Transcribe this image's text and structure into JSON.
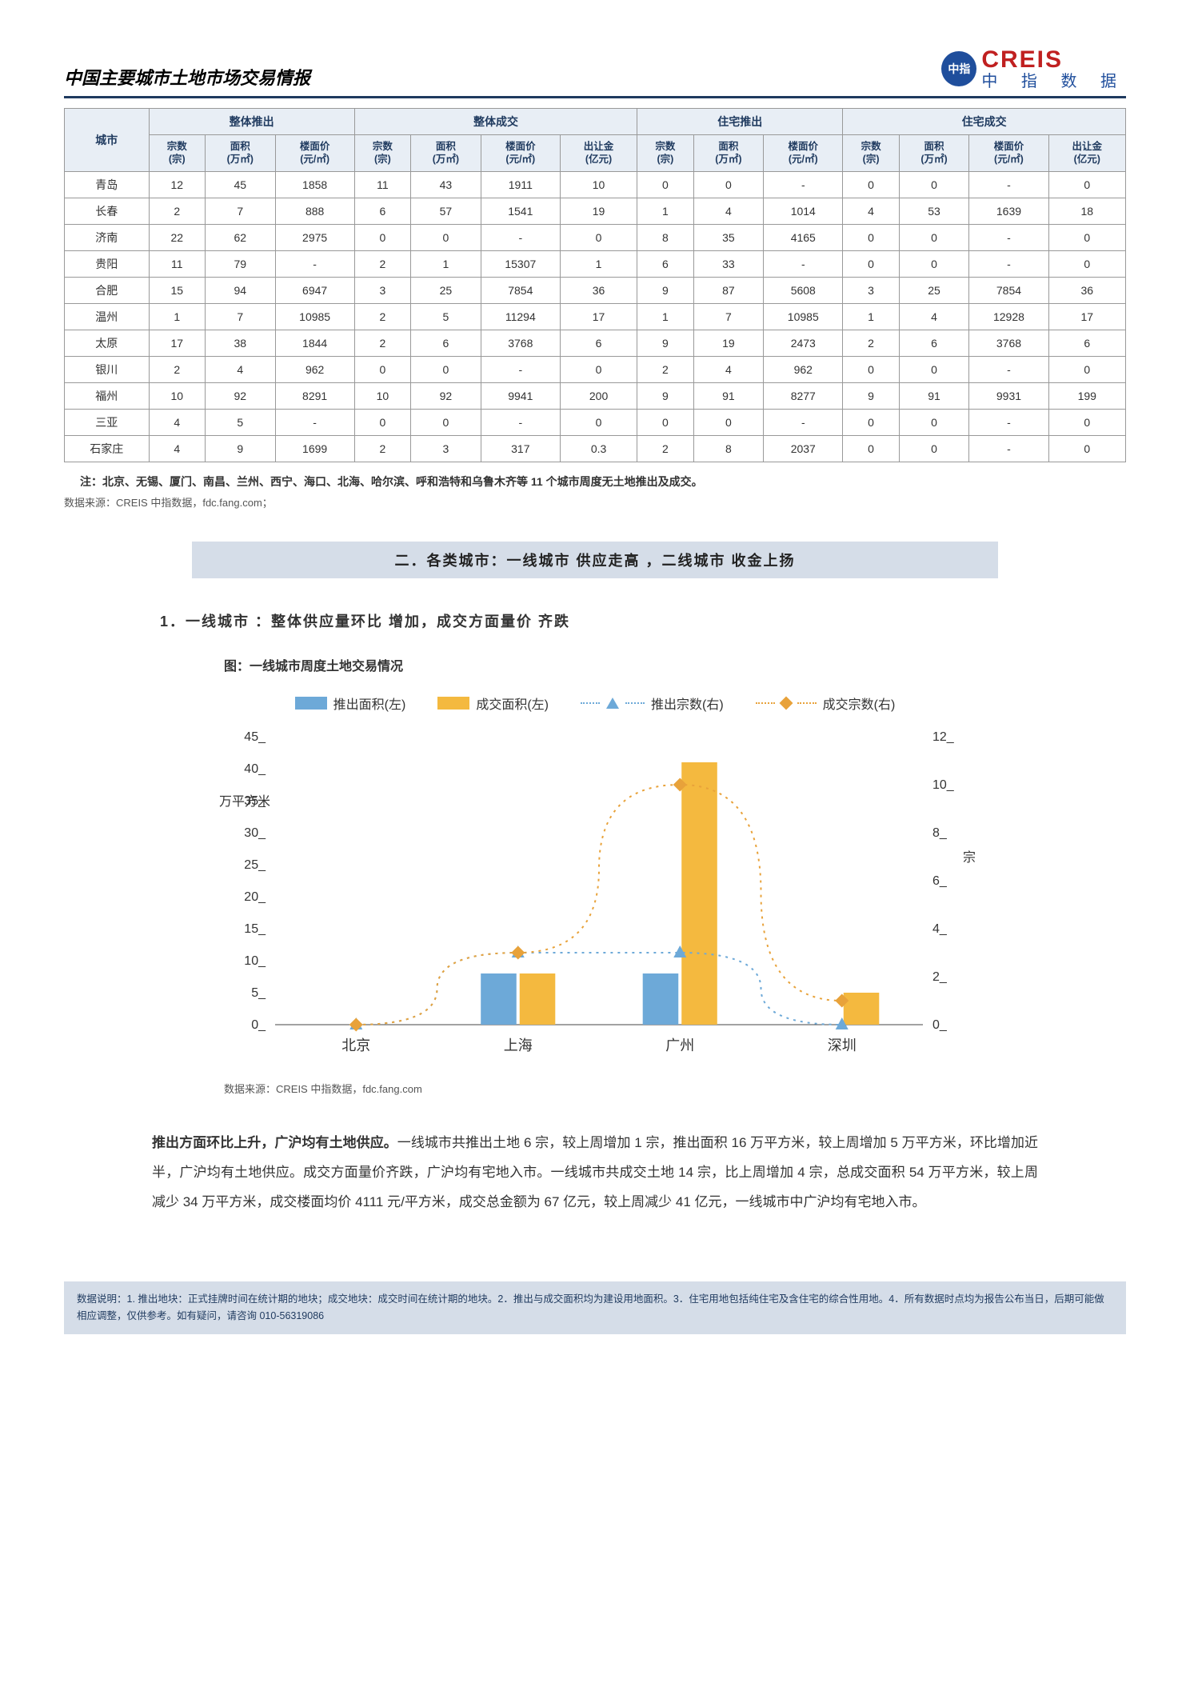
{
  "header": {
    "title": "中国主要城市土地市场交易情报",
    "logo_en": "CREIS",
    "logo_cn": "中 指 数 据",
    "logo_badge": "中指"
  },
  "table": {
    "city_header": "城市",
    "groups": [
      "整体推出",
      "整体成交",
      "住宅推出",
      "住宅成交"
    ],
    "cols_g1": [
      "宗数\n(宗)",
      "面积\n(万㎡)",
      "楼面价\n(元/㎡)"
    ],
    "cols_g2": [
      "宗数\n(宗)",
      "面积\n(万㎡)",
      "楼面价\n(元/㎡)",
      "出让金\n(亿元)"
    ],
    "cols_g3": [
      "宗数\n(宗)",
      "面积\n(万㎡)",
      "楼面价\n(元/㎡)"
    ],
    "cols_g4": [
      "宗数\n(宗)",
      "面积\n(万㎡)",
      "楼面价\n(元/㎡)",
      "出让金\n(亿元)"
    ],
    "rows": [
      {
        "city": "青岛",
        "v": [
          "12",
          "45",
          "1858",
          "11",
          "43",
          "1911",
          "10",
          "0",
          "0",
          "-",
          "0",
          "0",
          "-",
          "0"
        ]
      },
      {
        "city": "长春",
        "v": [
          "2",
          "7",
          "888",
          "6",
          "57",
          "1541",
          "19",
          "1",
          "4",
          "1014",
          "4",
          "53",
          "1639",
          "18"
        ]
      },
      {
        "city": "济南",
        "v": [
          "22",
          "62",
          "2975",
          "0",
          "0",
          "-",
          "0",
          "8",
          "35",
          "4165",
          "0",
          "0",
          "-",
          "0"
        ]
      },
      {
        "city": "贵阳",
        "v": [
          "11",
          "79",
          "-",
          "2",
          "1",
          "15307",
          "1",
          "6",
          "33",
          "-",
          "0",
          "0",
          "-",
          "0"
        ]
      },
      {
        "city": "合肥",
        "v": [
          "15",
          "94",
          "6947",
          "3",
          "25",
          "7854",
          "36",
          "9",
          "87",
          "5608",
          "3",
          "25",
          "7854",
          "36"
        ]
      },
      {
        "city": "温州",
        "v": [
          "1",
          "7",
          "10985",
          "2",
          "5",
          "11294",
          "17",
          "1",
          "7",
          "10985",
          "1",
          "4",
          "12928",
          "17"
        ]
      },
      {
        "city": "太原",
        "v": [
          "17",
          "38",
          "1844",
          "2",
          "6",
          "3768",
          "6",
          "9",
          "19",
          "2473",
          "2",
          "6",
          "3768",
          "6"
        ]
      },
      {
        "city": "银川",
        "v": [
          "2",
          "4",
          "962",
          "0",
          "0",
          "-",
          "0",
          "2",
          "4",
          "962",
          "0",
          "0",
          "-",
          "0"
        ]
      },
      {
        "city": "福州",
        "v": [
          "10",
          "92",
          "8291",
          "10",
          "92",
          "9941",
          "200",
          "9",
          "91",
          "8277",
          "9",
          "91",
          "9931",
          "199"
        ]
      },
      {
        "city": "三亚",
        "v": [
          "4",
          "5",
          "-",
          "0",
          "0",
          "-",
          "0",
          "0",
          "0",
          "-",
          "0",
          "0",
          "-",
          "0"
        ]
      },
      {
        "city": "石家庄",
        "v": [
          "4",
          "9",
          "1699",
          "2",
          "3",
          "317",
          "0.3",
          "2",
          "8",
          "2037",
          "0",
          "0",
          "-",
          "0"
        ]
      }
    ]
  },
  "note": "注：北京、无锡、厦门、南昌、兰州、西宁、海口、北海、哈尔滨、呼和浩特和乌鲁木齐等 11 个城市周度无土地推出及成交。",
  "source": "数据来源：CREIS 中指数据，fdc.fang.com；",
  "section_banner": "二．各类城市：一线城市 供应走高 ，二线城市 收金上扬",
  "sub_heading": "1．一线城市 ：整体供应量环比 增加，成交方面量价 齐跌",
  "chart_title": "图：一线城市周度土地交易情况",
  "legend": {
    "a": "推出面积(左)",
    "b": "成交面积(左)",
    "c": "推出宗数(右)",
    "d": "成交宗数(右)"
  },
  "chart": {
    "type": "bar+line",
    "categories": [
      "北京",
      "上海",
      "广州",
      "深圳"
    ],
    "left_axis": {
      "label": "万平方米",
      "min": 0,
      "max": 45,
      "ticks": [
        0,
        5,
        10,
        15,
        20,
        25,
        30,
        35,
        40,
        45
      ]
    },
    "right_axis": {
      "label": "宗",
      "min": 0,
      "max": 12,
      "ticks": [
        0,
        2,
        4,
        6,
        8,
        10,
        12
      ]
    },
    "bar_push_area": {
      "color": "#6da9d8",
      "values": [
        0,
        8,
        8,
        0
      ]
    },
    "bar_deal_area": {
      "color": "#f4b93f",
      "values": [
        0,
        8,
        41,
        5
      ]
    },
    "line_push_count": {
      "color": "#6da9d8",
      "dash": true,
      "marker": "triangle",
      "values": [
        0,
        3,
        3,
        0
      ]
    },
    "line_deal_count": {
      "color": "#e8a23a",
      "dash": true,
      "marker": "diamond",
      "values": [
        0,
        3,
        10,
        1
      ]
    },
    "plot_bg": "#ffffff",
    "axis_color": "#444",
    "font_size": 16
  },
  "chart_source": "数据来源：CREIS 中指数据，fdc.fang.com",
  "body": {
    "lead": "推出方面环比上升，广沪均有土地供应。",
    "rest": "一线城市共推出土地 6 宗，较上周增加 1 宗，推出面积 16 万平方米，较上周增加 5 万平方米，环比增加近半，广沪均有土地供应。成交方面量价齐跌，广沪均有宅地入市。一线城市共成交土地 14 宗，比上周增加 4 宗，总成交面积 54 万平方米，较上周减少 34 万平方米，成交楼面均价 4111 元/平方米，成交总金额为 67 亿元，较上周减少 41 亿元，一线城市中广沪均有宅地入市。"
  },
  "footer": "数据说明：1. 推出地块：正式挂牌时间在统计期的地块；成交地块：成交时间在统计期的地块。2．推出与成交面积均为建设用地面积。3．住宅用地包括纯住宅及含住宅的综合性用地。4．所有数据时点均为报告公布当日，后期可能做相应调整，仅供参考。如有疑问，请咨询 010-56319086"
}
